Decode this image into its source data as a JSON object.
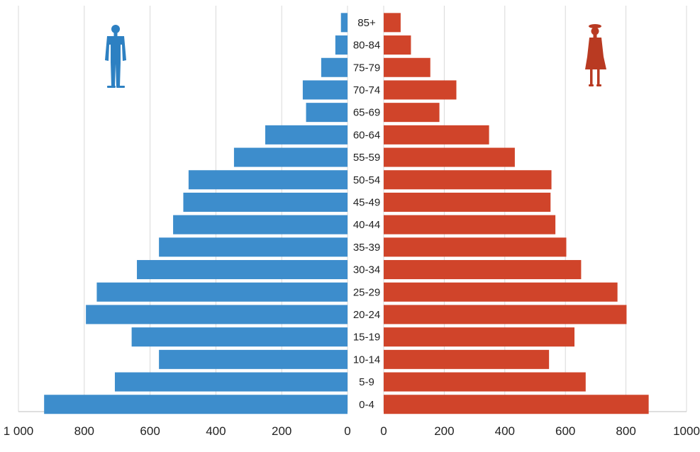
{
  "chart_data": {
    "type": "bar",
    "orientation": "horizontal",
    "subtype": "population-pyramid",
    "categories": [
      "0-4",
      "5-9",
      "10-14",
      "15-19",
      "20-24",
      "25-29",
      "30-34",
      "35-39",
      "40-44",
      "45-49",
      "50-54",
      "55-59",
      "60-64",
      "65-69",
      "70-74",
      "75-79",
      "80-84",
      "85+"
    ],
    "series": [
      {
        "side": "left",
        "color": "#3d8dcc",
        "icon": "man-silhouette-icon",
        "values": [
          922,
          707,
          573,
          656,
          795,
          762,
          640,
          573,
          530,
          499,
          483,
          345,
          250,
          126,
          136,
          80,
          37,
          20
        ]
      },
      {
        "side": "right",
        "color": "#d0442a",
        "icon": "woman-silhouette-icon",
        "values": [
          875,
          667,
          546,
          630,
          802,
          772,
          652,
          603,
          567,
          551,
          554,
          433,
          348,
          184,
          240,
          154,
          90,
          56
        ]
      }
    ],
    "axes": {
      "left": {
        "range": [
          0,
          1000
        ],
        "reversed": true,
        "ticks": [
          "1 000",
          "800",
          "600",
          "400",
          "200",
          "0"
        ]
      },
      "right": {
        "range": [
          0,
          1000
        ],
        "ticks": [
          "0",
          "200",
          "400",
          "600",
          "800",
          "1000"
        ]
      }
    },
    "grid": "vertical",
    "legend": "none"
  }
}
